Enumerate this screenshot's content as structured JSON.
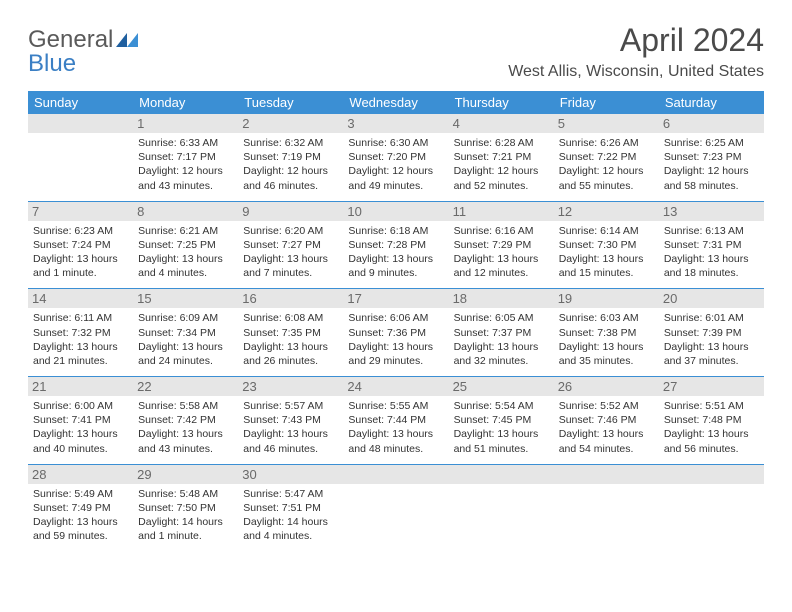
{
  "logo": {
    "part1": "General",
    "part2": "Blue"
  },
  "title": "April 2024",
  "location": "West Allis, Wisconsin, United States",
  "colors": {
    "header_bg": "#3b8fd4",
    "header_fg": "#ffffff",
    "daynum_bg": "#e6e6e6",
    "cell_border": "#3b8fd4",
    "text": "#333333",
    "title_text": "#4a4a4a",
    "logo_gray": "#5a5a5a",
    "logo_blue": "#3b7fc4"
  },
  "days_of_week": [
    "Sunday",
    "Monday",
    "Tuesday",
    "Wednesday",
    "Thursday",
    "Friday",
    "Saturday"
  ],
  "weeks": [
    [
      {
        "day": null
      },
      {
        "day": 1,
        "sunrise": "6:33 AM",
        "sunset": "7:17 PM",
        "daylight": "12 hours and 43 minutes."
      },
      {
        "day": 2,
        "sunrise": "6:32 AM",
        "sunset": "7:19 PM",
        "daylight": "12 hours and 46 minutes."
      },
      {
        "day": 3,
        "sunrise": "6:30 AM",
        "sunset": "7:20 PM",
        "daylight": "12 hours and 49 minutes."
      },
      {
        "day": 4,
        "sunrise": "6:28 AM",
        "sunset": "7:21 PM",
        "daylight": "12 hours and 52 minutes."
      },
      {
        "day": 5,
        "sunrise": "6:26 AM",
        "sunset": "7:22 PM",
        "daylight": "12 hours and 55 minutes."
      },
      {
        "day": 6,
        "sunrise": "6:25 AM",
        "sunset": "7:23 PM",
        "daylight": "12 hours and 58 minutes."
      }
    ],
    [
      {
        "day": 7,
        "sunrise": "6:23 AM",
        "sunset": "7:24 PM",
        "daylight": "13 hours and 1 minute."
      },
      {
        "day": 8,
        "sunrise": "6:21 AM",
        "sunset": "7:25 PM",
        "daylight": "13 hours and 4 minutes."
      },
      {
        "day": 9,
        "sunrise": "6:20 AM",
        "sunset": "7:27 PM",
        "daylight": "13 hours and 7 minutes."
      },
      {
        "day": 10,
        "sunrise": "6:18 AM",
        "sunset": "7:28 PM",
        "daylight": "13 hours and 9 minutes."
      },
      {
        "day": 11,
        "sunrise": "6:16 AM",
        "sunset": "7:29 PM",
        "daylight": "13 hours and 12 minutes."
      },
      {
        "day": 12,
        "sunrise": "6:14 AM",
        "sunset": "7:30 PM",
        "daylight": "13 hours and 15 minutes."
      },
      {
        "day": 13,
        "sunrise": "6:13 AM",
        "sunset": "7:31 PM",
        "daylight": "13 hours and 18 minutes."
      }
    ],
    [
      {
        "day": 14,
        "sunrise": "6:11 AM",
        "sunset": "7:32 PM",
        "daylight": "13 hours and 21 minutes."
      },
      {
        "day": 15,
        "sunrise": "6:09 AM",
        "sunset": "7:34 PM",
        "daylight": "13 hours and 24 minutes."
      },
      {
        "day": 16,
        "sunrise": "6:08 AM",
        "sunset": "7:35 PM",
        "daylight": "13 hours and 26 minutes."
      },
      {
        "day": 17,
        "sunrise": "6:06 AM",
        "sunset": "7:36 PM",
        "daylight": "13 hours and 29 minutes."
      },
      {
        "day": 18,
        "sunrise": "6:05 AM",
        "sunset": "7:37 PM",
        "daylight": "13 hours and 32 minutes."
      },
      {
        "day": 19,
        "sunrise": "6:03 AM",
        "sunset": "7:38 PM",
        "daylight": "13 hours and 35 minutes."
      },
      {
        "day": 20,
        "sunrise": "6:01 AM",
        "sunset": "7:39 PM",
        "daylight": "13 hours and 37 minutes."
      }
    ],
    [
      {
        "day": 21,
        "sunrise": "6:00 AM",
        "sunset": "7:41 PM",
        "daylight": "13 hours and 40 minutes."
      },
      {
        "day": 22,
        "sunrise": "5:58 AM",
        "sunset": "7:42 PM",
        "daylight": "13 hours and 43 minutes."
      },
      {
        "day": 23,
        "sunrise": "5:57 AM",
        "sunset": "7:43 PM",
        "daylight": "13 hours and 46 minutes."
      },
      {
        "day": 24,
        "sunrise": "5:55 AM",
        "sunset": "7:44 PM",
        "daylight": "13 hours and 48 minutes."
      },
      {
        "day": 25,
        "sunrise": "5:54 AM",
        "sunset": "7:45 PM",
        "daylight": "13 hours and 51 minutes."
      },
      {
        "day": 26,
        "sunrise": "5:52 AM",
        "sunset": "7:46 PM",
        "daylight": "13 hours and 54 minutes."
      },
      {
        "day": 27,
        "sunrise": "5:51 AM",
        "sunset": "7:48 PM",
        "daylight": "13 hours and 56 minutes."
      }
    ],
    [
      {
        "day": 28,
        "sunrise": "5:49 AM",
        "sunset": "7:49 PM",
        "daylight": "13 hours and 59 minutes."
      },
      {
        "day": 29,
        "sunrise": "5:48 AM",
        "sunset": "7:50 PM",
        "daylight": "14 hours and 1 minute."
      },
      {
        "day": 30,
        "sunrise": "5:47 AM",
        "sunset": "7:51 PM",
        "daylight": "14 hours and 4 minutes."
      },
      {
        "day": null
      },
      {
        "day": null
      },
      {
        "day": null
      },
      {
        "day": null
      }
    ]
  ]
}
